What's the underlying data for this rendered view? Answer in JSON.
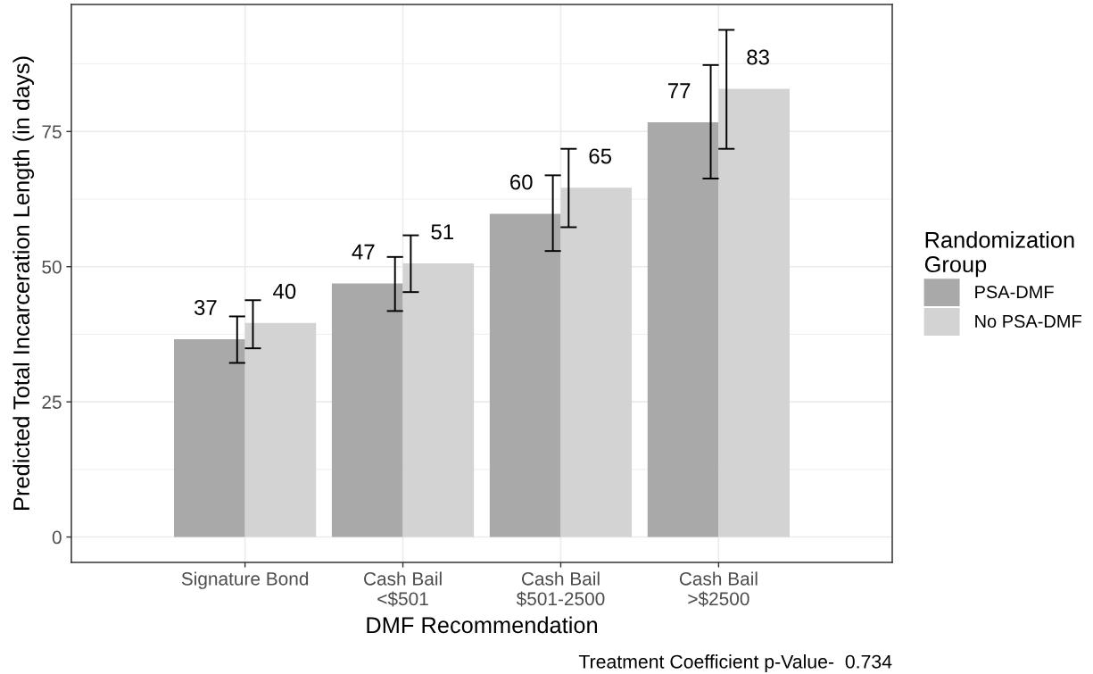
{
  "chart_data": {
    "type": "bar",
    "xlabel": "DMF Recommendation",
    "ylabel": "Predicted Total Incarceration Length (in days)",
    "legend_title": "Randomization\nGroup",
    "annotations": [
      "Treatment Coefficient p-Value-  0.734"
    ],
    "categories": [
      "Signature Bond",
      "Cash Bail\n<$501",
      "Cash Bail\n$501-2500",
      "Cash Bail\n>$2500"
    ],
    "series": [
      {
        "name": "PSA-DMF",
        "color": "#a9a9a9",
        "values": [
          36.6,
          46.9,
          59.8,
          76.7
        ],
        "errors": [
          [
            32.2,
            40.8
          ],
          [
            41.8,
            51.8
          ],
          [
            52.9,
            66.9
          ],
          [
            66.3,
            87.3
          ]
        ],
        "value_labels": [
          "37",
          "47",
          "60",
          "77"
        ]
      },
      {
        "name": "No PSA-DMF",
        "color": "#d3d3d3",
        "values": [
          39.6,
          50.6,
          64.6,
          82.9
        ],
        "errors": [
          [
            34.9,
            43.8
          ],
          [
            45.3,
            55.8
          ],
          [
            57.3,
            71.8
          ],
          [
            71.8,
            93.8
          ]
        ],
        "value_labels": [
          "40",
          "51",
          "65",
          "83"
        ]
      }
    ],
    "ylim": [
      -4.7,
      98.5
    ],
    "yticks": [
      0,
      25,
      50,
      75
    ],
    "grid": true,
    "legend": "right"
  }
}
